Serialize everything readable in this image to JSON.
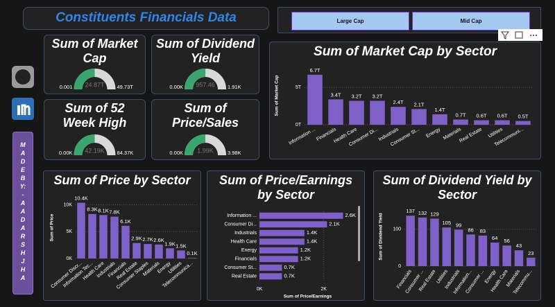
{
  "header": {
    "title": "Constituents Financials Data"
  },
  "slicer": {
    "options": [
      "Large Cap",
      "Mid Cap"
    ]
  },
  "sidebar": {
    "credit": "MADE BY:- AADARSH JHA"
  },
  "gauges": [
    {
      "title": "Sum of Market Cap",
      "min": 0.001,
      "max": {
        "value": 49.73,
        "label": "49.73T"
      },
      "value": 24.87,
      "value_label": "24.87T"
    },
    {
      "title": "Sum of Dividend Yield",
      "min": {
        "value": 0,
        "label": "0.00K"
      },
      "max": {
        "value": 1910,
        "label": "1.91K"
      },
      "value": 957.46
    },
    {
      "title": "Sum of 52 Week High",
      "min": {
        "value": 0,
        "label": "0.00K"
      },
      "max": {
        "value": 84370,
        "label": "84.37K"
      },
      "value": 42190,
      "value_label": "42.19K"
    },
    {
      "title": "Sum of Price/Sales",
      "min": {
        "value": 0,
        "label": "0.00K"
      },
      "max": {
        "value": 3980,
        "label": "3.98K"
      },
      "value": 1990,
      "value_label": "1.99K"
    }
  ],
  "chart_data": [
    {
      "type": "bar",
      "title": "Sum of Market Cap by Sector",
      "y_label": "Sum of Market Cap",
      "color": "#7f5fc8",
      "categories": [
        "Information ...",
        "Financials",
        "Health Care",
        "Consumer Di...",
        "Industrials",
        "Consumer St...",
        "Energy",
        "Materials",
        "Real Estate",
        "Utilities",
        "Telecommuni..."
      ],
      "values": [
        6.7,
        3.4,
        3.2,
        3.2,
        2.4,
        2.1,
        1.4,
        0.7,
        0.6,
        0.6,
        0.5
      ],
      "value_labels": [
        "6.7T",
        "3.4T",
        "3.2T",
        "3.2T",
        "2.4T",
        "2.1T",
        "1.4T",
        "0.7T",
        "0.6T",
        "0.6T",
        "0.5T"
      ],
      "ylim": [
        0,
        7.8
      ],
      "yticks": [
        {
          "value": 0,
          "label": "0T"
        },
        {
          "value": 5,
          "label": "5T"
        }
      ],
      "grid": true
    },
    {
      "type": "bar",
      "title": "Sum of Price by Sector",
      "y_label": "Sum of Price",
      "color": "#7f5fc8",
      "categories": [
        "Consumer Discr...",
        "Information Tec...",
        "Health Care",
        "Industrials",
        "Financials",
        "Real Estate",
        "Consumer Staples",
        "Materials",
        "Energy",
        "Utilities",
        "Telecommunica..."
      ],
      "values": [
        10400,
        8300,
        8100,
        7800,
        6100,
        2900,
        2700,
        2600,
        1900,
        1500,
        100
      ],
      "value_labels": [
        "10.4K",
        "8.3K",
        "8.1K",
        "7.8K",
        "6.1K",
        "2.9K",
        "2.7K",
        "2.6K",
        "1.9K",
        "1.5K",
        "0.1K"
      ],
      "ylim": [
        0,
        11500
      ],
      "yticks": [
        {
          "value": 0,
          "label": "0K"
        },
        {
          "value": 5000,
          "label": "5K"
        },
        {
          "value": 10000,
          "label": "10K"
        }
      ],
      "grid": true
    },
    {
      "type": "hbar",
      "title": "Sum of Price/Earnings by Sector",
      "x_label": "Sum of Price/Earnings",
      "color": "#7f5fc8",
      "categories": [
        "Information ...",
        "Consumer Di...",
        "Industrials",
        "Health Care",
        "Energy",
        "Financials",
        "Consumer St...",
        "Real Estate"
      ],
      "values": [
        2600,
        2100,
        1400,
        1400,
        1200,
        1200,
        700,
        700
      ],
      "value_labels": [
        "2.6K",
        "2.1K",
        "1.4K",
        "1.4K",
        "1.2K",
        "1.2K",
        "0.7K",
        "0.7K"
      ],
      "xlim": [
        0,
        3000
      ],
      "xticks": [
        {
          "value": 0,
          "label": "0K"
        },
        {
          "value": 2000,
          "label": "2K"
        }
      ],
      "grid": true
    },
    {
      "type": "bar",
      "title": "Sum of Dividend Yield by Sector",
      "y_label": "Sum of Dividend Yield",
      "color": "#7f5fc8",
      "categories": [
        "Financials",
        "Consumer ...",
        "Real Estate",
        "Utilities",
        "Industrials",
        "Information...",
        "Consumer ...",
        "Energy",
        "Health Care",
        "Materials",
        "Telecommu..."
      ],
      "values": [
        137,
        132,
        129,
        105,
        99,
        86,
        83,
        64,
        56,
        43,
        23
      ],
      "ylim": [
        0,
        160
      ],
      "yticks": [
        0,
        100
      ],
      "grid": true
    }
  ]
}
